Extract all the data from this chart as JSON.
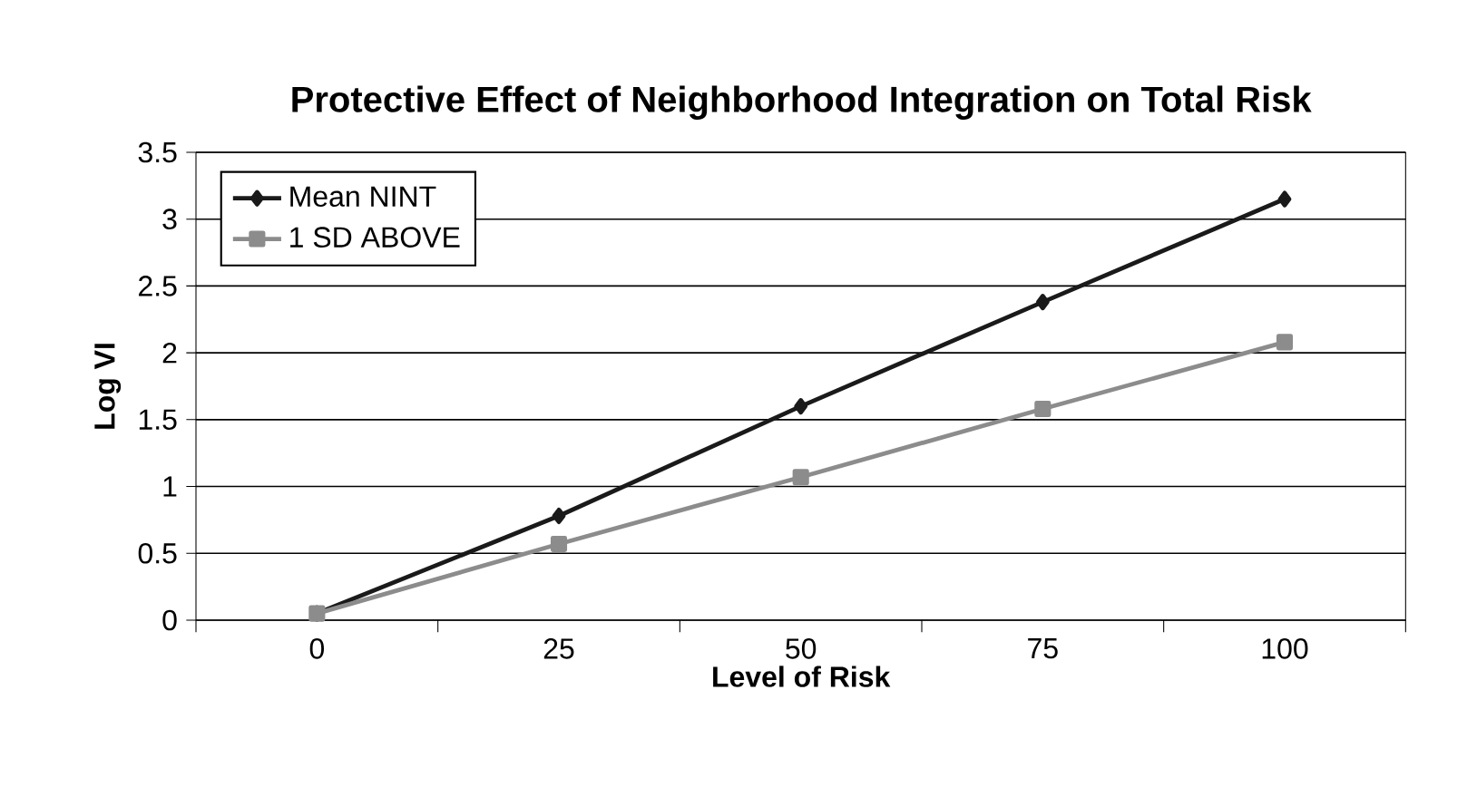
{
  "chart_data": {
    "type": "line",
    "title": "Protective Effect of Neighborhood Integration on Total Risk",
    "xlabel": "Level of Risk",
    "ylabel": "Log VI",
    "categories": [
      "0",
      "25",
      "50",
      "75",
      "100"
    ],
    "series": [
      {
        "name": "Mean NINT",
        "color": "#1a1a1a",
        "marker": "diamond",
        "values": [
          0.05,
          0.78,
          1.6,
          2.38,
          3.15
        ]
      },
      {
        "name": "1 SD ABOVE",
        "color": "#8c8c8c",
        "marker": "square",
        "values": [
          0.05,
          0.57,
          1.07,
          1.58,
          2.08
        ]
      }
    ],
    "ylim": [
      0,
      3.5
    ],
    "yticks": [
      0,
      0.5,
      1,
      1.5,
      2,
      2.5,
      3,
      3.5
    ],
    "grid": "y",
    "legend": "top left",
    "line_style": "solid"
  }
}
